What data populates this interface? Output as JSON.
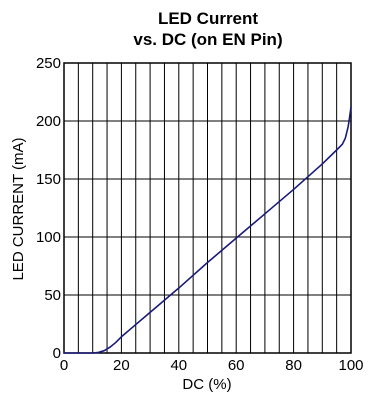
{
  "chart_data": {
    "type": "line",
    "title_lines": [
      "LED Current",
      "vs. DC (on EN Pin)"
    ],
    "xlabel": "DC (%)",
    "ylabel": "LED CURRENT (mA)",
    "xlim": [
      0,
      100
    ],
    "ylim": [
      0,
      250
    ],
    "x_ticks": [
      0,
      20,
      40,
      60,
      80,
      100
    ],
    "y_ticks": [
      0,
      50,
      100,
      150,
      200,
      250
    ],
    "x_tick_labels": [
      "0",
      "20",
      "40",
      "60",
      "80",
      "100"
    ],
    "y_tick_labels": [
      "0",
      "50",
      "100",
      "150",
      "200",
      "250"
    ],
    "x_grid_step": 5,
    "y_grid_step": 50,
    "grid": true,
    "series": [
      {
        "color": "#1a1a7a",
        "x": [
          0,
          10,
          12,
          14,
          16,
          18,
          20,
          30,
          40,
          50,
          60,
          70,
          80,
          90,
          95,
          97,
          98,
          99,
          99.5,
          100
        ],
        "y": [
          0,
          0,
          0.5,
          2,
          5,
          9,
          14,
          35,
          56,
          78,
          99,
          120,
          141,
          163,
          175,
          180,
          185,
          195,
          203,
          212
        ]
      }
    ]
  }
}
